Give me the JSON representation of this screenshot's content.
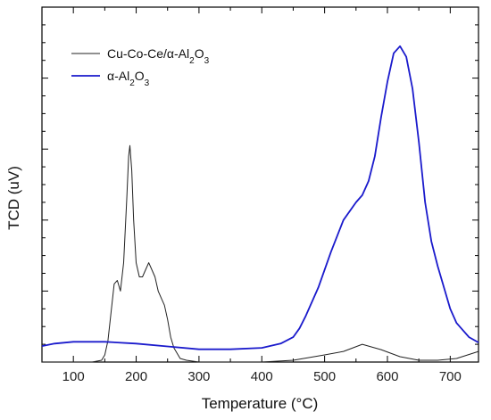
{
  "chart_data": {
    "type": "line",
    "xlabel": "Temperature (°C)",
    "ylabel": "TCD (uV)",
    "xlim": [
      50,
      745
    ],
    "ylim": [
      0,
      100
    ],
    "x_ticks": [
      100,
      200,
      300,
      400,
      500,
      600,
      700
    ],
    "y_ticks_labeled": false,
    "legend_position": "top-left",
    "series": [
      {
        "name_parts": [
          "Cu-Co-Ce/",
          "α",
          "-Al",
          "2",
          "O",
          "3"
        ],
        "color": "#222222",
        "x": [
          50,
          100,
          130,
          145,
          150,
          155,
          160,
          165,
          170,
          175,
          180,
          185,
          188,
          190,
          193,
          196,
          200,
          205,
          210,
          215,
          220,
          225,
          230,
          235,
          240,
          245,
          250,
          255,
          260,
          270,
          280,
          300,
          350,
          400,
          450,
          500,
          530,
          560,
          590,
          620,
          650,
          680,
          710,
          745
        ],
        "y": [
          0,
          0,
          0,
          0.5,
          2,
          6,
          14,
          22,
          23,
          20,
          28,
          46,
          58,
          61,
          54,
          40,
          28,
          24,
          24,
          26,
          28,
          26,
          24,
          20,
          18,
          16,
          12,
          7,
          4,
          1,
          0.5,
          0,
          0,
          0,
          0.5,
          2,
          3,
          5,
          3.5,
          1.5,
          0.5,
          0.5,
          1,
          3
        ]
      },
      {
        "name_parts": [
          "α",
          "-Al",
          "2",
          "O",
          "3"
        ],
        "color": "#1a1acc",
        "x": [
          50,
          70,
          100,
          150,
          200,
          250,
          300,
          350,
          400,
          430,
          450,
          460,
          470,
          490,
          510,
          530,
          550,
          560,
          570,
          580,
          590,
          600,
          610,
          620,
          630,
          640,
          650,
          660,
          670,
          680,
          690,
          700,
          710,
          720,
          730,
          745
        ],
        "y": [
          4.5,
          5.2,
          5.7,
          5.7,
          5.2,
          4.4,
          3.6,
          3.6,
          4.0,
          5.2,
          7.0,
          9.5,
          13,
          21,
          31,
          40,
          45,
          47,
          51,
          58,
          69,
          79,
          87,
          89,
          86,
          77,
          62,
          45,
          34,
          27,
          21,
          15,
          11,
          9,
          7,
          5.5
        ]
      }
    ]
  }
}
